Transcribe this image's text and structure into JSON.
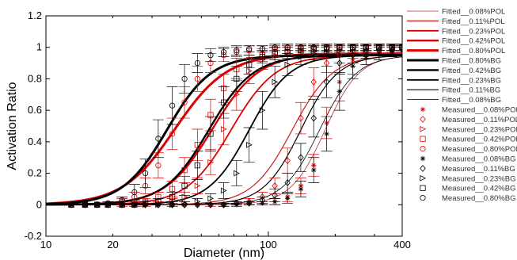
{
  "chart_data": {
    "type": "line",
    "title": "",
    "xlabel": "Diameter (nm)",
    "ylabel": "Activation Ratio",
    "xscale": "log",
    "xlim": [
      10,
      400
    ],
    "ylim": [
      -0.2,
      1.2
    ],
    "xticks": [
      10,
      20,
      100,
      400
    ],
    "xtick_labels": [
      "10",
      "20",
      "100",
      "400"
    ],
    "yticks": [
      -0.2,
      0,
      0.2,
      0.4,
      0.6,
      0.8,
      1,
      1.2
    ],
    "ytick_labels": [
      "-0.2",
      "0",
      "0.2",
      "0.4",
      "0.6",
      "0.8",
      "1",
      "1.2"
    ],
    "grid": false,
    "legend_placement": "outside-right",
    "fitted_series": [
      {
        "name": "Fitted__0.08%POL",
        "color": "#b83232",
        "width": 0.8,
        "d50": 180,
        "k": 13,
        "top": 0.95
      },
      {
        "name": "Fitted__0.11%POL",
        "color": "#cc1a1a",
        "width": 1.2,
        "d50": 128,
        "k": 11,
        "top": 0.95
      },
      {
        "name": "Fitted__0.23%POL",
        "color": "#dd0000",
        "width": 1.8,
        "d50": 68,
        "k": 10,
        "top": 0.95
      },
      {
        "name": "Fitted__0.42%POL",
        "color": "#dd0000",
        "width": 2.4,
        "d50": 56,
        "k": 9.5,
        "top": 0.96
      },
      {
        "name": "Fitted__0.80%POL",
        "color": "#dd0000",
        "width": 3.0,
        "d50": 38,
        "k": 8.5,
        "top": 0.96
      },
      {
        "name": "Fitted__0.80%BG",
        "color": "#000000",
        "width": 3.0,
        "d50": 35,
        "k": 10,
        "top": 0.95
      },
      {
        "name": "Fitted__0.42%BG",
        "color": "#000000",
        "width": 2.4,
        "d50": 54,
        "k": 10,
        "top": 0.95
      },
      {
        "name": "Fitted__0.23%BG",
        "color": "#000000",
        "width": 1.8,
        "d50": 82,
        "k": 11,
        "top": 0.95
      },
      {
        "name": "Fitted__0.11%BG",
        "color": "#000000",
        "width": 1.2,
        "d50": 140,
        "k": 12,
        "top": 0.95
      },
      {
        "name": "Fitted__0.08%BG",
        "color": "#000000",
        "width": 0.8,
        "d50": 170,
        "k": 12,
        "top": 0.95
      }
    ],
    "measured_series": [
      {
        "name": "Measured__0.08%POL",
        "marker": "asterisk",
        "color": "#dd0000",
        "x": [
          13,
          15,
          17,
          19,
          22,
          25,
          28,
          32,
          37,
          42,
          48,
          55,
          63,
          72,
          82,
          94,
          107,
          122,
          140,
          160,
          183,
          209,
          240,
          275,
          315,
          360,
          400
        ],
        "y": [
          0,
          0,
          0,
          0,
          0,
          0,
          0,
          0,
          0,
          0,
          0,
          0,
          0,
          0.01,
          0.01,
          0.01,
          0.02,
          0.05,
          0.12,
          0.25,
          0.52,
          0.78,
          0.92,
          0.95,
          0.97,
          0.98,
          0.98
        ],
        "err": [
          0,
          0,
          0,
          0,
          0,
          0,
          0,
          0,
          0,
          0,
          0,
          0,
          0.01,
          0.01,
          0.01,
          0.01,
          0.02,
          0.03,
          0.05,
          0.07,
          0.1,
          0.12,
          0.09,
          0.06,
          0.05,
          0.03,
          0.02
        ]
      },
      {
        "name": "Measured__0.11%POL",
        "marker": "diamond",
        "color": "#dd0000",
        "x": [
          13,
          15,
          17,
          19,
          22,
          25,
          28,
          32,
          37,
          42,
          48,
          55,
          63,
          72,
          82,
          94,
          107,
          122,
          140,
          160,
          183,
          209,
          240,
          275,
          315,
          360,
          400
        ],
        "y": [
          0,
          0,
          0,
          0,
          0,
          0,
          0,
          0,
          0,
          0,
          0,
          0,
          0,
          0.01,
          0.02,
          0.05,
          0.12,
          0.28,
          0.55,
          0.78,
          0.9,
          0.95,
          0.97,
          0.98,
          0.98,
          0.99,
          0.99
        ],
        "err": [
          0,
          0,
          0,
          0,
          0,
          0,
          0,
          0,
          0,
          0,
          0,
          0.01,
          0.01,
          0.01,
          0.02,
          0.03,
          0.05,
          0.08,
          0.1,
          0.09,
          0.06,
          0.05,
          0.04,
          0.03,
          0.03,
          0.02,
          0.02
        ]
      },
      {
        "name": "Measured__0.23%POL",
        "marker": "triangle-right",
        "color": "#dd0000",
        "x": [
          13,
          15,
          17,
          19,
          22,
          25,
          28,
          32,
          37,
          42,
          48,
          55,
          63,
          72,
          82,
          94,
          107,
          122,
          140,
          160,
          183,
          209,
          240,
          275,
          315,
          360,
          400
        ],
        "y": [
          0,
          0,
          0,
          0,
          0,
          0,
          0,
          0.01,
          0.02,
          0.05,
          0.12,
          0.27,
          0.48,
          0.7,
          0.85,
          0.92,
          0.95,
          0.97,
          0.98,
          0.98,
          0.99,
          0.99,
          0.99,
          1,
          1,
          1,
          1
        ],
        "err": [
          0,
          0,
          0,
          0,
          0,
          0,
          0.01,
          0.01,
          0.02,
          0.03,
          0.05,
          0.08,
          0.1,
          0.1,
          0.08,
          0.06,
          0.05,
          0.04,
          0.03,
          0.03,
          0.02,
          0.02,
          0.02,
          0.02,
          0.02,
          0.02,
          0.02
        ]
      },
      {
        "name": "Measured__0.42%POL",
        "marker": "square",
        "color": "#dd0000",
        "x": [
          13,
          15,
          17,
          19,
          22,
          25,
          28,
          32,
          37,
          42,
          48,
          55,
          63,
          72,
          82,
          94,
          107,
          122,
          140,
          160,
          183,
          209,
          240,
          275,
          315,
          360,
          400
        ],
        "y": [
          0,
          0,
          0,
          0,
          0,
          0.01,
          0.02,
          0.05,
          0.1,
          0.22,
          0.38,
          0.57,
          0.74,
          0.86,
          0.92,
          0.95,
          0.97,
          0.98,
          0.99,
          0.99,
          1,
          1,
          1,
          1,
          1,
          1,
          1
        ],
        "err": [
          0,
          0,
          0,
          0,
          0.01,
          0.01,
          0.02,
          0.03,
          0.05,
          0.08,
          0.1,
          0.1,
          0.09,
          0.07,
          0.05,
          0.04,
          0.03,
          0.03,
          0.02,
          0.02,
          0.02,
          0.02,
          0.02,
          0.02,
          0.02,
          0.02,
          0.02
        ]
      },
      {
        "name": "Measured__0.80%POL",
        "marker": "circle",
        "color": "#dd0000",
        "x": [
          13,
          15,
          17,
          19,
          22,
          25,
          28,
          32,
          37,
          42,
          48,
          55,
          63,
          72,
          82,
          94,
          107,
          122,
          140,
          160,
          183,
          209,
          240,
          275,
          315,
          360,
          400
        ],
        "y": [
          0,
          0,
          0,
          0.01,
          0.02,
          0.05,
          0.12,
          0.25,
          0.45,
          0.65,
          0.8,
          0.9,
          0.95,
          0.97,
          0.98,
          0.99,
          0.99,
          1,
          1,
          1,
          1,
          1,
          1,
          1,
          1,
          1,
          1
        ],
        "err": [
          0,
          0,
          0,
          0.01,
          0.02,
          0.03,
          0.05,
          0.08,
          0.1,
          0.1,
          0.08,
          0.06,
          0.04,
          0.03,
          0.03,
          0.02,
          0.02,
          0.02,
          0.02,
          0.02,
          0.02,
          0.02,
          0.02,
          0.02,
          0.02,
          0.02,
          0.02
        ]
      },
      {
        "name": "Measured__0.08%BG",
        "marker": "asterisk",
        "color": "#000000",
        "x": [
          13,
          15,
          17,
          19,
          22,
          25,
          28,
          32,
          37,
          42,
          48,
          55,
          63,
          72,
          82,
          94,
          107,
          122,
          140,
          160,
          183,
          209,
          240,
          275,
          315,
          360,
          400
        ],
        "y": [
          0,
          0,
          0,
          0,
          0,
          0,
          0,
          0,
          0,
          0,
          0,
          0,
          0,
          0,
          0.01,
          0.01,
          0.02,
          0.04,
          0.1,
          0.22,
          0.45,
          0.72,
          0.88,
          0.94,
          0.96,
          0.97,
          0.98
        ],
        "err": [
          0,
          0,
          0,
          0,
          0,
          0,
          0,
          0,
          0,
          0,
          0,
          0,
          0,
          0.01,
          0.01,
          0.01,
          0.02,
          0.03,
          0.05,
          0.08,
          0.11,
          0.12,
          0.08,
          0.05,
          0.04,
          0.03,
          0.03
        ]
      },
      {
        "name": "Measured__0.11%BG",
        "marker": "diamond",
        "color": "#000000",
        "x": [
          13,
          15,
          17,
          19,
          22,
          25,
          28,
          32,
          37,
          42,
          48,
          55,
          63,
          72,
          82,
          94,
          107,
          122,
          140,
          160,
          183,
          209,
          240,
          275,
          315,
          360,
          400
        ],
        "y": [
          0,
          0,
          0,
          0,
          0,
          0,
          0,
          0,
          0,
          0,
          0,
          0,
          0,
          0.01,
          0.01,
          0.03,
          0.06,
          0.14,
          0.3,
          0.55,
          0.78,
          0.9,
          0.95,
          0.97,
          0.98,
          0.98,
          0.99
        ],
        "err": [
          0,
          0,
          0,
          0,
          0,
          0,
          0,
          0,
          0,
          0,
          0,
          0,
          0.01,
          0.01,
          0.01,
          0.02,
          0.04,
          0.06,
          0.09,
          0.12,
          0.1,
          0.07,
          0.05,
          0.04,
          0.03,
          0.03,
          0.02
        ]
      },
      {
        "name": "Measured__0.23%BG",
        "marker": "triangle-right",
        "color": "#000000",
        "x": [
          13,
          15,
          17,
          19,
          22,
          25,
          28,
          32,
          37,
          42,
          48,
          55,
          63,
          72,
          82,
          94,
          107,
          122,
          140,
          160,
          183,
          209,
          240,
          275,
          315,
          360,
          400
        ],
        "y": [
          0,
          0,
          0,
          0,
          0,
          0,
          0,
          0,
          0,
          0.01,
          0.02,
          0.04,
          0.09,
          0.2,
          0.38,
          0.6,
          0.78,
          0.89,
          0.94,
          0.96,
          0.97,
          0.98,
          0.99,
          0.99,
          1,
          1,
          1
        ],
        "err": [
          0,
          0,
          0,
          0,
          0,
          0,
          0,
          0,
          0.01,
          0.01,
          0.02,
          0.03,
          0.05,
          0.08,
          0.11,
          0.12,
          0.1,
          0.07,
          0.05,
          0.04,
          0.03,
          0.03,
          0.02,
          0.02,
          0.02,
          0.02,
          0.02
        ]
      },
      {
        "name": "Measured__0.42%BG",
        "marker": "square",
        "color": "#000000",
        "x": [
          13,
          15,
          17,
          19,
          22,
          25,
          28,
          32,
          37,
          42,
          48,
          55,
          63,
          72,
          82,
          94,
          107,
          122,
          140,
          160,
          183,
          209,
          240,
          275,
          315,
          360,
          400
        ],
        "y": [
          0,
          0,
          0,
          0,
          0,
          0,
          0.01,
          0.02,
          0.05,
          0.12,
          0.25,
          0.45,
          0.65,
          0.8,
          0.89,
          0.94,
          0.96,
          0.97,
          0.98,
          0.99,
          0.99,
          1,
          1,
          1,
          1,
          1,
          1
        ],
        "err": [
          0,
          0,
          0,
          0,
          0,
          0.01,
          0.01,
          0.02,
          0.03,
          0.06,
          0.09,
          0.11,
          0.1,
          0.08,
          0.06,
          0.04,
          0.04,
          0.03,
          0.03,
          0.02,
          0.02,
          0.02,
          0.02,
          0.02,
          0.02,
          0.02,
          0.02
        ]
      },
      {
        "name": "Measured__0.80%BG",
        "marker": "circle",
        "color": "#000000",
        "x": [
          13,
          15,
          17,
          19,
          22,
          25,
          28,
          32,
          37,
          42,
          48,
          55,
          63,
          72,
          82,
          94,
          107,
          122,
          140,
          160,
          183,
          209,
          240,
          275,
          315,
          360,
          400
        ],
        "y": [
          0,
          0,
          0,
          0.01,
          0.03,
          0.08,
          0.2,
          0.42,
          0.63,
          0.8,
          0.9,
          0.95,
          0.97,
          0.98,
          0.99,
          0.99,
          1,
          1,
          1,
          1,
          1,
          1,
          1,
          1,
          1,
          1,
          1
        ],
        "err": [
          0,
          0,
          0,
          0.01,
          0.02,
          0.05,
          0.09,
          0.12,
          0.12,
          0.09,
          0.06,
          0.04,
          0.03,
          0.03,
          0.02,
          0.02,
          0.02,
          0.02,
          0.02,
          0.02,
          0.02,
          0.02,
          0.02,
          0.02,
          0.02,
          0.02,
          0.02
        ]
      }
    ]
  }
}
